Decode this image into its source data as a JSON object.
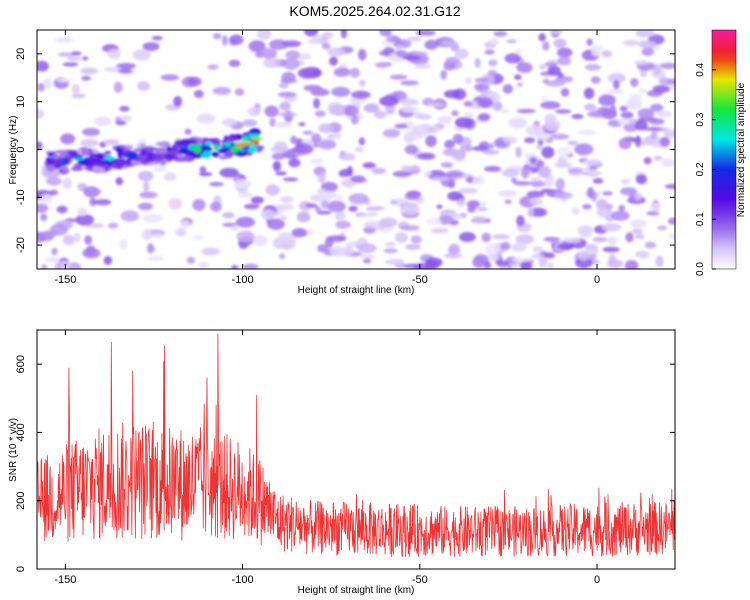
{
  "title": "KOM5.2025.264.02.31.G12",
  "chart_data": [
    {
      "type": "heatmap",
      "xlabel": "Height of straight line (km)",
      "ylabel": "Frequency (Hz)",
      "xlim": [
        -158,
        22
      ],
      "ylim": [
        -25,
        25
      ],
      "xticks": [
        -150,
        -100,
        -50,
        0
      ],
      "yticks": [
        -20,
        -10,
        0,
        10,
        20
      ],
      "colorbar": {
        "label": "Normalized spectral amplitude",
        "range": [
          0.0,
          0.48
        ],
        "ticks": [
          0.0,
          0.1,
          0.2,
          0.3,
          0.4
        ],
        "colormap": "rainbow (white-violet-blue-cyan-green-yellow-red-magenta)"
      },
      "features": {
        "strong_signal_band": {
          "x": [
            -155,
            -150,
            -145,
            -140,
            -135,
            -130,
            -125,
            -120,
            -115,
            -110,
            -105,
            -100,
            -95
          ],
          "y": [
            -2,
            -2.5,
            -2,
            -2.5,
            -1.5,
            -1,
            -1,
            -0.5,
            0,
            0,
            0.5,
            1,
            2
          ],
          "amplitude": [
            0.2,
            0.25,
            0.22,
            0.2,
            0.3,
            0.2,
            0.15,
            0.18,
            0.3,
            0.4,
            0.3,
            0.45,
            0.4
          ]
        },
        "background_amplitude": 0.05
      }
    },
    {
      "type": "line",
      "xlabel": "Height of straight line (km)",
      "ylabel": "SNR (10 * v/v)",
      "xlim": [
        -158,
        22
      ],
      "ylim": [
        0,
        700
      ],
      "xticks": [
        -150,
        -100,
        -50,
        0
      ],
      "yticks": [
        0,
        200,
        400,
        600
      ],
      "color": "#ee3333",
      "envelope": {
        "x": [
          -158,
          -150,
          -140,
          -130,
          -120,
          -110,
          -100,
          -95,
          -90,
          -80,
          -60,
          -40,
          -20,
          0,
          22
        ],
        "mean": [
          200,
          220,
          250,
          260,
          250,
          250,
          230,
          200,
          140,
          120,
          115,
          110,
          110,
          115,
          120
        ],
        "amp": [
          120,
          150,
          170,
          180,
          170,
          170,
          150,
          130,
          90,
          80,
          80,
          75,
          75,
          80,
          80
        ]
      },
      "peaks": [
        {
          "x": -149,
          "y": 590
        },
        {
          "x": -137,
          "y": 665
        },
        {
          "x": -131,
          "y": 580
        },
        {
          "x": -122,
          "y": 655
        },
        {
          "x": -107,
          "y": 690
        },
        {
          "x": -110,
          "y": 560
        },
        {
          "x": -96,
          "y": 510
        }
      ]
    }
  ]
}
